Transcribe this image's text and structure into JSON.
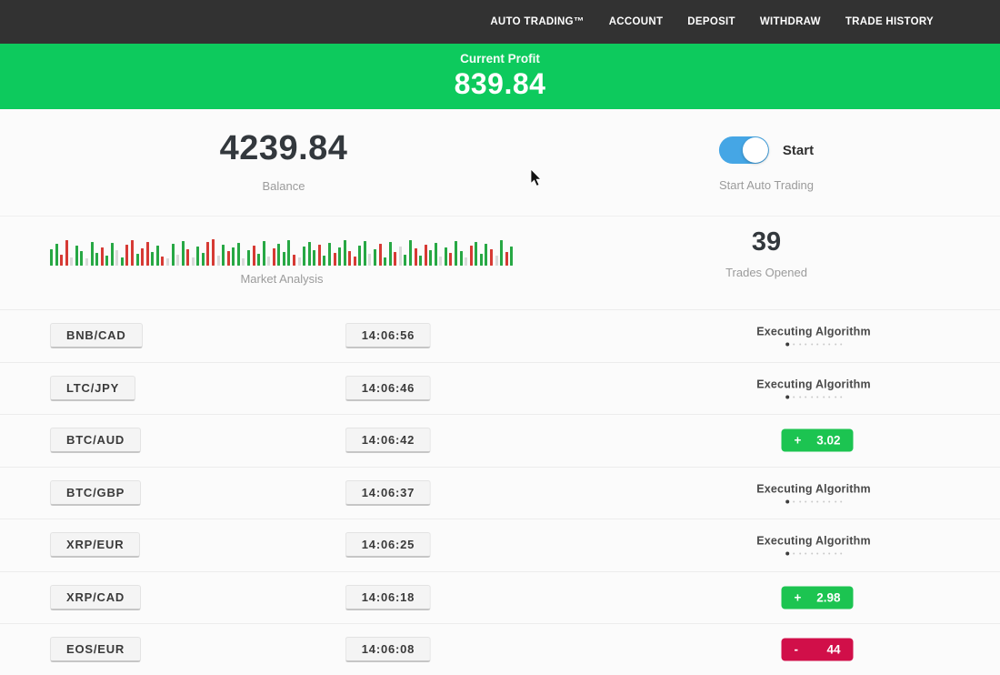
{
  "nav": {
    "items": [
      {
        "label": "AUTO TRADING™"
      },
      {
        "label": "ACCOUNT"
      },
      {
        "label": "DEPOSIT"
      },
      {
        "label": "WITHDRAW"
      },
      {
        "label": "TRADE HISTORY"
      }
    ]
  },
  "profit_banner": {
    "label": "Current Profit",
    "value": "839.84"
  },
  "stats": {
    "balance": {
      "value": "4239.84",
      "label": "Balance"
    },
    "auto_trading": {
      "toggle_state": "on",
      "toggle_label": "Start",
      "label": "Start Auto Trading"
    },
    "market_analysis": {
      "label": "Market Analysis"
    },
    "trades_opened": {
      "value": "39",
      "label": "Trades Opened"
    }
  },
  "trades": [
    {
      "pair": "BNB/CAD",
      "time": "14:06:56",
      "status": "executing",
      "status_text": "Executing Algorithm"
    },
    {
      "pair": "LTC/JPY",
      "time": "14:06:46",
      "status": "executing",
      "status_text": "Executing Algorithm"
    },
    {
      "pair": "BTC/AUD",
      "time": "14:06:42",
      "status": "profit",
      "sign": "+",
      "value": "3.02"
    },
    {
      "pair": "BTC/GBP",
      "time": "14:06:37",
      "status": "executing",
      "status_text": "Executing Algorithm"
    },
    {
      "pair": "XRP/EUR",
      "time": "14:06:25",
      "status": "executing",
      "status_text": "Executing Algorithm"
    },
    {
      "pair": "XRP/CAD",
      "time": "14:06:18",
      "status": "profit",
      "sign": "+",
      "value": "2.98"
    },
    {
      "pair": "EOS/EUR",
      "time": "14:06:08",
      "status": "loss",
      "sign": "-",
      "value": "44"
    }
  ],
  "progress_dots": {
    "total": 10,
    "active_index": 0
  },
  "market_chart": {
    "bar_colors_key": {
      "g": "green",
      "r": "red",
      "l": "gray"
    },
    "colors": "ggrrlgglggrgglgrrgrrggrlglgrlggrrlgrgglgrgglrgggrlgggrggrggrrgglgrggrlggrgrgglgrgglrgggrlgrg",
    "heights": [
      18,
      24,
      12,
      28,
      9,
      22,
      16,
      8,
      26,
      14,
      20,
      11,
      25,
      17,
      9,
      23,
      28,
      13,
      19,
      26,
      15,
      22,
      10,
      8,
      24,
      12,
      27,
      18,
      9,
      21,
      14,
      26,
      29,
      11,
      23,
      16,
      20,
      25,
      8,
      17,
      22,
      13,
      27,
      10,
      19,
      24,
      15,
      28,
      12,
      9,
      21,
      26,
      17,
      23,
      11,
      25,
      14,
      20,
      28,
      16,
      10,
      22,
      27,
      13,
      18,
      24,
      9,
      26,
      15,
      21,
      12,
      28,
      19,
      11,
      23,
      17,
      25,
      10,
      20,
      14,
      27,
      16,
      9,
      22,
      26,
      13,
      24,
      18,
      11,
      28,
      15,
      21
    ]
  },
  "colors": {
    "nav_bg": "#323232",
    "banner_green": "#0dca5d",
    "badge_green": "#1cc451",
    "badge_red": "#d10f49",
    "toggle_blue": "#45a6e5",
    "chart_green": "#27a844",
    "chart_red": "#d63a34",
    "text_dark": "#33383d",
    "text_gray": "#9b9b9b"
  }
}
